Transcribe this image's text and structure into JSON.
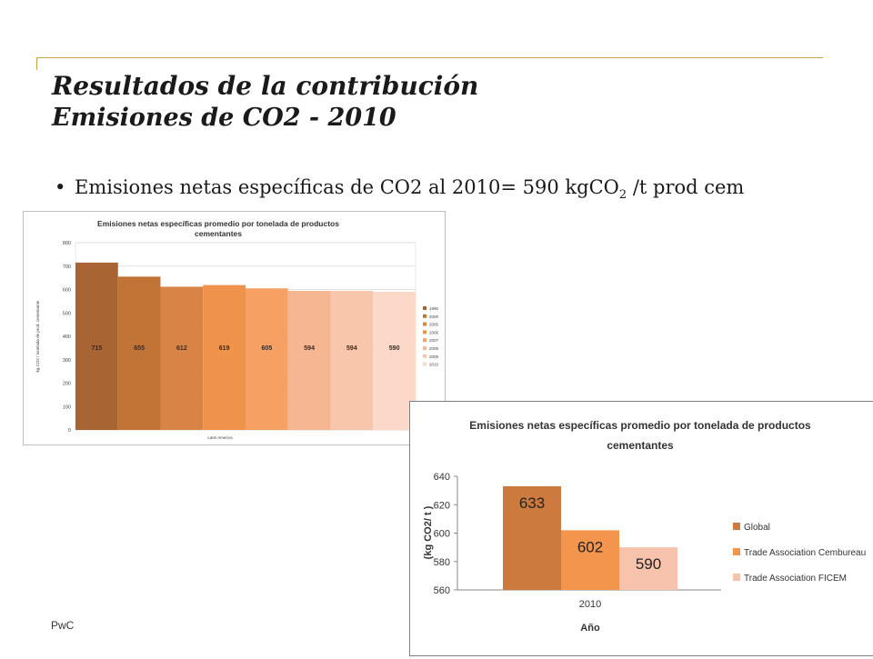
{
  "slide": {
    "title": "Resultados de la contribución",
    "subtitle": "Emisiones de CO2 - 2010",
    "bullet_main": "Emisiones netas específicas de CO2 al 2010= 590 kgCO",
    "bullet_sub": "2",
    "bullet_end": " /t prod cem",
    "footer": "PwC",
    "accent_color": "#c9a24a"
  },
  "chart_data": [
    {
      "type": "bar",
      "title_line1": "Emisiones  netas específicas promedio  por tonelada de productos",
      "title_line2": "cementantes",
      "xlabel": "Latin America",
      "ylabel": "kg CO2 / tonelada de prod. cementante",
      "ylim": [
        0,
        800
      ],
      "yticks": [
        "0",
        "100",
        "200",
        "300",
        "400",
        "500",
        "600",
        "700",
        "800"
      ],
      "grid": true,
      "legend_position": "right",
      "series": [
        {
          "name": "1990",
          "value": 715,
          "label": "715",
          "color": "#a86432"
        },
        {
          "name": "2000",
          "value": 655,
          "label": "655",
          "color": "#c27437"
        },
        {
          "name": "2005",
          "value": 612,
          "label": "612",
          "color": "#d98446"
        },
        {
          "name": "2006",
          "value": 619,
          "label": "619",
          "color": "#ee924c"
        },
        {
          "name": "2007",
          "value": 605,
          "label": "605",
          "color": "#f6a163"
        },
        {
          "name": "2008",
          "value": 594,
          "label": "594",
          "color": "#f6b691"
        },
        {
          "name": "2009",
          "value": 594,
          "label": "594",
          "color": "#f8c7ab"
        },
        {
          "name": "2010",
          "value": 590,
          "label": "590",
          "color": "#fbd8c7"
        }
      ]
    },
    {
      "type": "bar",
      "title_line1": "Emisiones netas específicas promedio por tonelada de productos",
      "title_line2": "cementantes",
      "category": "2010",
      "xlabel": "Año",
      "ylabel": "(kg CO2/ t )",
      "ylim": [
        560,
        640
      ],
      "yticks": [
        "560",
        "580",
        "600",
        "620",
        "640"
      ],
      "grid": false,
      "legend_position": "right",
      "series": [
        {
          "name": "Global",
          "value": 633,
          "label": "633",
          "color": "#cd7a3e"
        },
        {
          "name": "Trade Association Cembureau",
          "value": 602,
          "label": "602",
          "color": "#f3954c"
        },
        {
          "name": "Trade Association FICEM",
          "value": 590,
          "label": "590",
          "color": "#f8c3ac"
        }
      ]
    }
  ]
}
